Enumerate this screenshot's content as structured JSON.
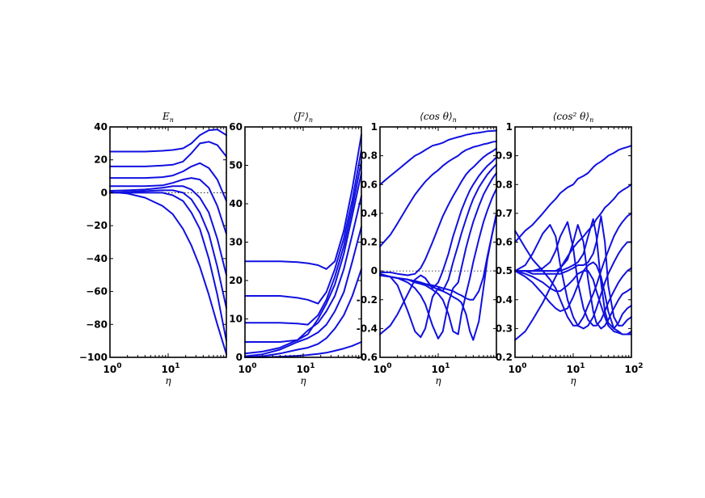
{
  "chart_data": [
    {
      "type": "line",
      "title": "E_n",
      "xlabel": "η",
      "x_scale": "log",
      "xlim": [
        1,
        100
      ],
      "ylim": [
        -100,
        40
      ],
      "x_ticks": [
        {
          "v": 1,
          "base": "10",
          "exp": "0"
        },
        {
          "v": 10,
          "base": "10",
          "exp": "1"
        }
      ],
      "y_ticks": [
        {
          "v": 40,
          "label": "40"
        },
        {
          "v": 20,
          "label": "20"
        },
        {
          "v": 0,
          "label": "0"
        },
        {
          "v": -20,
          "label": "−20"
        },
        {
          "v": -40,
          "label": "−40"
        },
        {
          "v": -60,
          "label": "−60"
        },
        {
          "v": -80,
          "label": "−80"
        },
        {
          "v": -100,
          "label": "−100"
        }
      ],
      "reference_line": 0,
      "line_color": "#1010e0",
      "x": [
        1,
        2,
        4,
        8,
        12,
        18,
        25,
        35,
        50,
        70,
        100
      ],
      "series": [
        {
          "values": [
            25,
            25,
            25,
            25.5,
            26,
            27,
            30,
            35,
            38,
            38.5,
            35
          ]
        },
        {
          "values": [
            16,
            16,
            16,
            16.5,
            17,
            19,
            24,
            30,
            31,
            29,
            22
          ]
        },
        {
          "values": [
            9,
            9,
            9,
            9.5,
            10.5,
            13,
            16,
            18,
            15,
            8,
            -5
          ]
        },
        {
          "values": [
            4,
            4,
            4,
            4.5,
            6,
            8,
            9,
            8,
            3,
            -8,
            -25
          ]
        },
        {
          "values": [
            1.2,
            1.5,
            2,
            3,
            4,
            4,
            2,
            -3,
            -12,
            -28,
            -50
          ]
        },
        {
          "values": [
            0,
            0.5,
            1,
            1.5,
            1.5,
            0,
            -4,
            -12,
            -25,
            -45,
            -70
          ]
        },
        {
          "values": [
            0,
            0,
            0,
            0,
            -1.5,
            -5,
            -12,
            -22,
            -40,
            -62,
            -90
          ]
        },
        {
          "values": [
            0.5,
            -0.5,
            -3,
            -8,
            -13,
            -22,
            -32,
            -45,
            -62,
            -80,
            -98
          ]
        }
      ]
    },
    {
      "type": "line",
      "title": "⟨J²⟩_n",
      "xlabel": "η",
      "x_scale": "log",
      "xlim": [
        1,
        100
      ],
      "ylim": [
        0,
        60
      ],
      "x_ticks": [
        {
          "v": 1,
          "base": "10",
          "exp": "0"
        },
        {
          "v": 10,
          "base": "10",
          "exp": "1"
        }
      ],
      "y_ticks": [
        {
          "v": 60,
          "label": "60"
        },
        {
          "v": 50,
          "label": "50"
        },
        {
          "v": 40,
          "label": "40"
        },
        {
          "v": 30,
          "label": "30"
        },
        {
          "v": 20,
          "label": "20"
        },
        {
          "v": 10,
          "label": "10"
        },
        {
          "v": 0,
          "label": "0"
        }
      ],
      "reference_line": null,
      "line_color": "#1010e0",
      "x": [
        1,
        2,
        4,
        8,
        12,
        18,
        25,
        35,
        50,
        70,
        100
      ],
      "series": [
        {
          "values": [
            25,
            25,
            25,
            24.8,
            24.5,
            24,
            23,
            25,
            33,
            44,
            58
          ]
        },
        {
          "values": [
            16,
            16,
            16,
            15.5,
            15,
            14,
            17,
            23,
            31,
            41,
            54
          ]
        },
        {
          "values": [
            9,
            9,
            9,
            8.8,
            8.5,
            11,
            15,
            21,
            29,
            39,
            51
          ]
        },
        {
          "values": [
            4,
            4,
            4,
            4.5,
            6,
            10,
            14,
            19,
            27,
            37,
            48
          ]
        },
        {
          "values": [
            1,
            1.5,
            2.5,
            4.5,
            7,
            9,
            12,
            16,
            23,
            32,
            42
          ]
        },
        {
          "values": [
            0.3,
            0.8,
            2,
            4,
            5,
            6.5,
            8.5,
            12,
            17,
            25,
            34
          ]
        },
        {
          "values": [
            0,
            0.3,
            1,
            2,
            2.5,
            3.5,
            5,
            7.5,
            11,
            16,
            23
          ]
        },
        {
          "values": [
            0,
            0,
            0.2,
            0.4,
            0.6,
            0.9,
            1.2,
            1.7,
            2.3,
            3,
            4
          ]
        }
      ]
    },
    {
      "type": "line",
      "title": "⟨cos θ⟩_n",
      "xlabel": "η",
      "x_scale": "log",
      "xlim": [
        1,
        100
      ],
      "ylim": [
        -0.6,
        1
      ],
      "x_ticks": [
        {
          "v": 1,
          "base": "10",
          "exp": "0"
        },
        {
          "v": 10,
          "base": "10",
          "exp": "1"
        }
      ],
      "y_ticks": [
        {
          "v": 1,
          "label": "1"
        },
        {
          "v": 0.8,
          "label": "0.8"
        },
        {
          "v": 0.6,
          "label": "0.6"
        },
        {
          "v": 0.4,
          "label": "0.4"
        },
        {
          "v": 0.2,
          "label": "0.2"
        },
        {
          "v": 0,
          "label": "0"
        },
        {
          "v": -0.2,
          "label": "-0.2"
        },
        {
          "v": -0.4,
          "label": "-0.4"
        },
        {
          "v": -0.6,
          "label": "-0.6"
        }
      ],
      "reference_line": 0,
      "line_color": "#1010e0",
      "x": [
        1,
        1.5,
        2,
        3,
        4,
        5,
        6,
        8,
        10,
        12,
        15,
        18,
        22,
        25,
        30,
        35,
        40,
        50,
        60,
        70,
        85,
        100
      ],
      "series": [
        {
          "values": [
            0.6,
            0.66,
            0.7,
            0.76,
            0.8,
            0.82,
            0.84,
            0.87,
            0.88,
            0.89,
            0.91,
            0.92,
            0.93,
            0.935,
            0.945,
            0.95,
            0.955,
            0.96,
            0.965,
            0.97,
            0.972,
            0.975
          ]
        },
        {
          "values": [
            0.17,
            0.25,
            0.33,
            0.45,
            0.53,
            0.58,
            0.62,
            0.67,
            0.7,
            0.73,
            0.76,
            0.78,
            0.8,
            0.82,
            0.84,
            0.85,
            0.86,
            0.87,
            0.88,
            0.885,
            0.895,
            0.9
          ]
        },
        {
          "values": [
            -0.01,
            -0.01,
            -0.02,
            -0.03,
            -0.02,
            0.02,
            0.08,
            0.2,
            0.3,
            0.38,
            0.46,
            0.52,
            0.58,
            0.62,
            0.67,
            0.7,
            0.72,
            0.76,
            0.79,
            0.81,
            0.83,
            0.85
          ]
        },
        {
          "values": [
            -0.44,
            -0.38,
            -0.3,
            -0.16,
            -0.06,
            -0.03,
            -0.05,
            -0.12,
            -0.08,
            0.0,
            0.12,
            0.24,
            0.35,
            0.42,
            0.5,
            0.56,
            0.6,
            0.66,
            0.7,
            0.73,
            0.76,
            0.79
          ]
        },
        {
          "values": [
            -0.02,
            -0.04,
            -0.1,
            -0.28,
            -0.42,
            -0.46,
            -0.4,
            -0.18,
            -0.12,
            -0.14,
            -0.06,
            0.06,
            0.18,
            0.26,
            0.36,
            0.44,
            0.5,
            0.58,
            0.63,
            0.67,
            0.71,
            0.74
          ]
        },
        {
          "values": [
            -0.03,
            -0.04,
            -0.05,
            -0.08,
            -0.12,
            -0.17,
            -0.23,
            -0.38,
            -0.47,
            -0.42,
            -0.22,
            -0.12,
            -0.08,
            0.02,
            0.16,
            0.26,
            0.34,
            0.45,
            0.53,
            0.58,
            0.64,
            0.68
          ]
        },
        {
          "values": [
            -0.03,
            -0.04,
            -0.05,
            -0.06,
            -0.08,
            -0.09,
            -0.1,
            -0.13,
            -0.16,
            -0.2,
            -0.3,
            -0.42,
            -0.44,
            -0.3,
            -0.16,
            -0.05,
            0.06,
            0.22,
            0.34,
            0.42,
            0.51,
            0.57
          ]
        },
        {
          "values": [
            -0.03,
            -0.04,
            -0.05,
            -0.06,
            -0.07,
            -0.08,
            -0.09,
            -0.11,
            -0.13,
            -0.14,
            -0.16,
            -0.18,
            -0.2,
            -0.22,
            -0.3,
            -0.42,
            -0.48,
            -0.35,
            -0.12,
            0.08,
            0.26,
            0.4
          ]
        },
        {
          "values": [
            -0.03,
            -0.04,
            -0.05,
            -0.06,
            -0.07,
            -0.08,
            -0.09,
            -0.1,
            -0.11,
            -0.12,
            -0.13,
            -0.14,
            -0.16,
            -0.17,
            -0.19,
            -0.2,
            -0.2,
            -0.14,
            -0.04,
            0.1,
            0.26,
            0.38
          ]
        }
      ]
    },
    {
      "type": "line",
      "title": "⟨cos² θ⟩_n",
      "xlabel": "η",
      "x_scale": "log",
      "xlim": [
        1,
        100
      ],
      "ylim": [
        0.2,
        1
      ],
      "x_ticks": [
        {
          "v": 1,
          "base": "10",
          "exp": "0"
        },
        {
          "v": 10,
          "base": "10",
          "exp": "1"
        }
      ],
      "y_ticks": [
        {
          "v": 1,
          "label": "1"
        },
        {
          "v": 0.9,
          "label": "0.9"
        },
        {
          "v": 0.8,
          "label": "0.8"
        },
        {
          "v": 0.7,
          "label": "0.7"
        },
        {
          "v": 0.6,
          "label": "0.6"
        },
        {
          "v": 0.5,
          "label": "0.5"
        },
        {
          "v": 0.4,
          "label": "0.4"
        },
        {
          "v": 0.3,
          "label": "0.3"
        },
        {
          "v": 0.2,
          "label": "0.2"
        }
      ],
      "reference_line": null,
      "line_color": "#1010e0",
      "x_end_label": {
        "base": "10",
        "exp": "2"
      },
      "x": [
        1,
        1.5,
        2,
        3,
        4,
        5,
        6,
        8,
        10,
        12,
        15,
        18,
        22,
        25,
        30,
        35,
        40,
        50,
        60,
        70,
        85,
        100
      ],
      "series": [
        {
          "values": [
            0.6,
            0.64,
            0.66,
            0.7,
            0.73,
            0.75,
            0.77,
            0.79,
            0.8,
            0.82,
            0.83,
            0.84,
            0.86,
            0.87,
            0.88,
            0.89,
            0.9,
            0.91,
            0.92,
            0.925,
            0.93,
            0.935
          ]
        },
        {
          "values": [
            0.26,
            0.29,
            0.33,
            0.39,
            0.44,
            0.48,
            0.51,
            0.55,
            0.58,
            0.6,
            0.62,
            0.64,
            0.66,
            0.68,
            0.7,
            0.72,
            0.73,
            0.75,
            0.77,
            0.78,
            0.79,
            0.8
          ]
        },
        {
          "values": [
            0.64,
            0.58,
            0.54,
            0.5,
            0.47,
            0.44,
            0.4,
            0.34,
            0.31,
            0.31,
            0.34,
            0.38,
            0.42,
            0.45,
            0.5,
            0.54,
            0.57,
            0.62,
            0.65,
            0.67,
            0.69,
            0.7
          ]
        },
        {
          "values": [
            0.5,
            0.52,
            0.56,
            0.63,
            0.66,
            0.62,
            0.52,
            0.4,
            0.34,
            0.31,
            0.3,
            0.31,
            0.34,
            0.37,
            0.42,
            0.46,
            0.49,
            0.53,
            0.56,
            0.58,
            0.6,
            0.6
          ]
        },
        {
          "values": [
            0.5,
            0.5,
            0.5,
            0.51,
            0.53,
            0.57,
            0.62,
            0.67,
            0.58,
            0.46,
            0.37,
            0.33,
            0.31,
            0.31,
            0.33,
            0.36,
            0.39,
            0.43,
            0.46,
            0.48,
            0.5,
            0.51
          ]
        },
        {
          "values": [
            0.5,
            0.5,
            0.5,
            0.5,
            0.5,
            0.5,
            0.51,
            0.54,
            0.6,
            0.66,
            0.6,
            0.47,
            0.36,
            0.32,
            0.3,
            0.31,
            0.33,
            0.37,
            0.4,
            0.42,
            0.43,
            0.44
          ]
        },
        {
          "values": [
            0.5,
            0.5,
            0.5,
            0.5,
            0.5,
            0.5,
            0.5,
            0.51,
            0.52,
            0.53,
            0.56,
            0.62,
            0.68,
            0.62,
            0.46,
            0.36,
            0.32,
            0.3,
            0.32,
            0.35,
            0.37,
            0.38
          ]
        },
        {
          "values": [
            0.5,
            0.5,
            0.49,
            0.49,
            0.49,
            0.49,
            0.49,
            0.5,
            0.51,
            0.52,
            0.52,
            0.53,
            0.56,
            0.6,
            0.69,
            0.6,
            0.45,
            0.34,
            0.31,
            0.31,
            0.33,
            0.34
          ]
        },
        {
          "values": [
            0.5,
            0.49,
            0.48,
            0.46,
            0.44,
            0.43,
            0.43,
            0.45,
            0.47,
            0.49,
            0.5,
            0.52,
            0.53,
            0.52,
            0.48,
            0.42,
            0.36,
            0.3,
            0.29,
            0.28,
            0.28,
            0.29
          ]
        },
        {
          "values": [
            0.5,
            0.48,
            0.46,
            0.42,
            0.39,
            0.37,
            0.36,
            0.37,
            0.41,
            0.45,
            0.5,
            0.5,
            0.47,
            0.43,
            0.38,
            0.34,
            0.31,
            0.29,
            0.285,
            0.28,
            0.28,
            0.28
          ]
        }
      ]
    }
  ]
}
